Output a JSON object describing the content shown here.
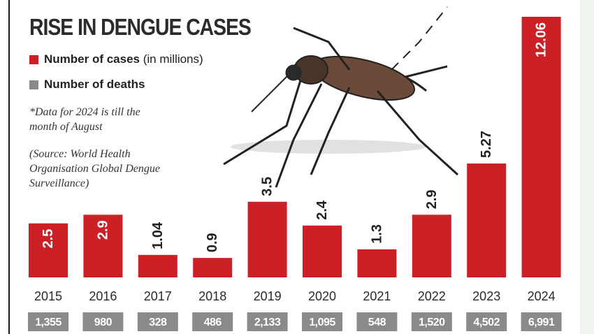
{
  "title": "RISE IN DENGUE CASES",
  "legend": [
    {
      "label_bold": "Number of cases",
      "label_rest": " (in millions)",
      "color": "#cc1f26"
    },
    {
      "label_bold": "Number of deaths",
      "label_rest": "",
      "color": "#8a8a8a"
    }
  ],
  "note": "*Data for 2024 is till the month of August",
  "source": "(Source: World Health Organisation Global Dengue Surveillance)",
  "colors": {
    "bar": "#cc1f26",
    "death_box": "#8a8a8a",
    "label_dark": "#222222",
    "label_light": "#ffffff"
  },
  "chart_data": {
    "type": "bar",
    "categories": [
      "2015",
      "2016",
      "2017",
      "2018",
      "2019",
      "2020",
      "2021",
      "2022",
      "2023",
      "2024"
    ],
    "series": [
      {
        "name": "Number of cases",
        "values": [
          2.5,
          2.9,
          1.04,
          0.9,
          3.5,
          2.4,
          1.3,
          2.9,
          5.27,
          12.06
        ]
      },
      {
        "name": "Number of deaths",
        "values": [
          1355,
          980,
          328,
          486,
          2133,
          1095,
          548,
          1520,
          4502,
          6991
        ]
      }
    ],
    "value_labels": [
      "2.5",
      "2.9",
      "1.04",
      "0.9",
      "3.5",
      "2.4",
      "1.3",
      "2.9",
      "5.27",
      "12.06"
    ],
    "death_labels": [
      "1,355",
      "980",
      "328",
      "486",
      "2,133",
      "1,095",
      "548",
      "1,520",
      "4,502",
      "6,991"
    ],
    "label_inside": [
      true,
      true,
      false,
      false,
      false,
      false,
      false,
      false,
      false,
      true
    ],
    "ylim": [
      0,
      12.06
    ],
    "xlabel": "",
    "ylabel": "",
    "grid": false,
    "legend_position": "top-left"
  }
}
